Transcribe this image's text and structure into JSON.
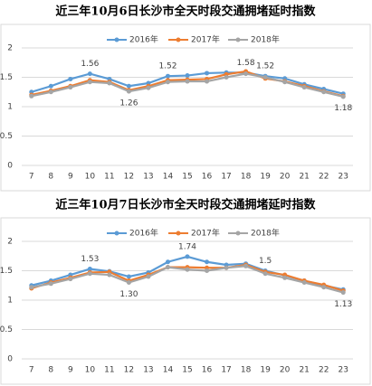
{
  "chart_data": [
    {
      "type": "line",
      "title": "近三年10月6日长沙市全天时段交通拥堵延时指数",
      "categories": [
        "7",
        "8",
        "9",
        "10",
        "11",
        "12",
        "13",
        "14",
        "15",
        "16",
        "17",
        "18",
        "19",
        "20",
        "21",
        "22",
        "23"
      ],
      "ylim": [
        0,
        2
      ],
      "yticks": [
        0,
        0.5,
        1,
        1.5,
        2
      ],
      "grid": true,
      "legend": "top",
      "series": [
        {
          "name": "2016年",
          "color": "#5b9bd5",
          "values": [
            1.25,
            1.35,
            1.47,
            1.56,
            1.47,
            1.35,
            1.4,
            1.52,
            1.53,
            1.57,
            1.58,
            1.58,
            1.52,
            1.48,
            1.38,
            1.3,
            1.22
          ],
          "value_labels": [
            null,
            null,
            null,
            "1.56",
            null,
            null,
            null,
            "1.52",
            null,
            null,
            null,
            "1.58",
            "1.52",
            null,
            null,
            null,
            null
          ]
        },
        {
          "name": "2017年",
          "color": "#ed7d31",
          "values": [
            1.2,
            1.27,
            1.35,
            1.45,
            1.42,
            1.28,
            1.35,
            1.45,
            1.46,
            1.47,
            1.55,
            1.6,
            1.48,
            1.43,
            1.35,
            1.26,
            1.18
          ],
          "value_labels": [
            null,
            null,
            null,
            null,
            null,
            null,
            null,
            null,
            null,
            null,
            null,
            null,
            null,
            null,
            null,
            null,
            "1.18"
          ]
        },
        {
          "name": "2018年",
          "color": "#a5a5a5",
          "values": [
            1.18,
            1.25,
            1.33,
            1.42,
            1.4,
            1.26,
            1.32,
            1.42,
            1.43,
            1.43,
            1.5,
            1.56,
            1.5,
            1.42,
            1.33,
            1.25,
            1.17
          ],
          "value_labels": [
            null,
            null,
            null,
            null,
            null,
            "1.26",
            null,
            null,
            null,
            null,
            null,
            null,
            null,
            null,
            null,
            null,
            null
          ]
        }
      ]
    },
    {
      "type": "line",
      "title": "近三年10月7日长沙市全天时段交通拥堵延时指数",
      "categories": [
        "7",
        "8",
        "9",
        "10",
        "11",
        "12",
        "13",
        "14",
        "15",
        "16",
        "17",
        "18",
        "19",
        "20",
        "21",
        "22",
        "23"
      ],
      "ylim": [
        0,
        2
      ],
      "yticks": [
        0,
        0.5,
        1,
        1.5,
        2
      ],
      "grid": true,
      "legend": "top",
      "series": [
        {
          "name": "2016年",
          "color": "#5b9bd5",
          "values": [
            1.25,
            1.33,
            1.43,
            1.53,
            1.49,
            1.4,
            1.47,
            1.65,
            1.74,
            1.65,
            1.6,
            1.62,
            1.5,
            1.42,
            1.33,
            1.25,
            1.18
          ],
          "value_labels": [
            null,
            null,
            null,
            "1.53",
            null,
            null,
            null,
            null,
            "1.74",
            null,
            null,
            null,
            "1.5",
            null,
            null,
            null,
            null
          ]
        },
        {
          "name": "2017年",
          "color": "#ed7d31",
          "values": [
            1.2,
            1.3,
            1.38,
            1.47,
            1.48,
            1.33,
            1.43,
            1.56,
            1.56,
            1.55,
            1.55,
            1.6,
            1.48,
            1.43,
            1.33,
            1.26,
            1.16
          ]
        },
        {
          "name": "2018年",
          "color": "#a5a5a5",
          "values": [
            1.22,
            1.28,
            1.36,
            1.45,
            1.43,
            1.3,
            1.4,
            1.56,
            1.52,
            1.5,
            1.55,
            1.58,
            1.45,
            1.38,
            1.3,
            1.22,
            1.13
          ],
          "value_labels": [
            null,
            null,
            null,
            null,
            null,
            "1.30",
            null,
            null,
            null,
            null,
            null,
            null,
            null,
            null,
            null,
            null,
            "1.13"
          ]
        }
      ]
    }
  ]
}
